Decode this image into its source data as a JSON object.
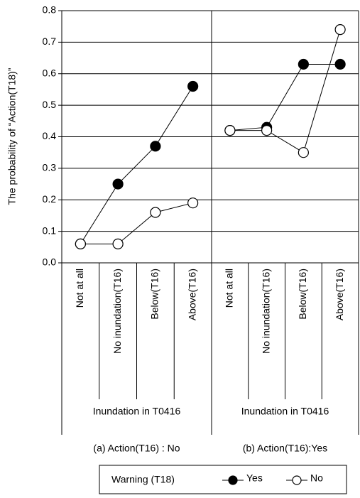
{
  "chart_data": {
    "type": "line",
    "ylabel": "The probability of “Action(T18)”",
    "ylim": [
      0,
      0.8
    ],
    "yticks": [
      {
        "value": 0,
        "label": "0.0"
      },
      0.1,
      0.2,
      0.3,
      0.4,
      0.5,
      0.6,
      0.7,
      0.8
    ],
    "grid": true,
    "panels": [
      {
        "categories": [
          "Not at all",
          "No inundation(T16)",
          "Below(T16)",
          "Above(T16)"
        ],
        "group_label": "Inundation in T0416",
        "caption": "(a) Action(T16) : No"
      },
      {
        "categories": [
          "Not at all",
          "No inundation(T16)",
          "Below(T16)",
          "Above(T16)"
        ],
        "group_label": "Inundation in T0416",
        "caption": "(b) Action(T16):Yes"
      }
    ],
    "legend_title": "Warning (T18)",
    "series": [
      {
        "name": "Yes",
        "color": "#000000",
        "values": [
          [
            0.06,
            0.25,
            0.37,
            0.56
          ],
          [
            0.42,
            0.43,
            0.63,
            0.63
          ]
        ]
      },
      {
        "name": "No",
        "color": "#ffffff",
        "values": [
          [
            0.06,
            0.06,
            0.16,
            0.19
          ],
          [
            0.42,
            0.42,
            0.35,
            0.74
          ]
        ]
      }
    ]
  }
}
